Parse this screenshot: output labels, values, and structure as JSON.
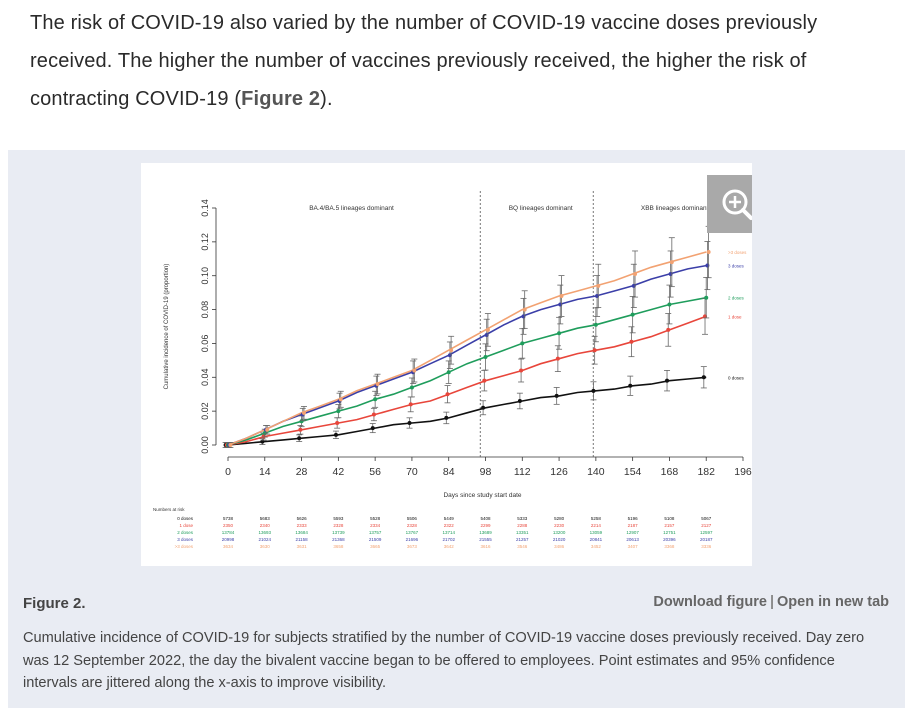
{
  "intro": {
    "text": "The risk of COVID-19 also varied by the number of COVID-19 vaccine doses previously received. The higher the number of vaccines previously received, the higher the risk of contracting COVID-19 (",
    "link": "Figure 2",
    "tail": ")."
  },
  "figure": {
    "label": "Figure 2.",
    "download": "Download figure",
    "separator": "|",
    "open_new_tab": "Open in new tab",
    "caption": "Cumulative incidence of COVID-19 for subjects stratified by the number of COVID-19 vaccine doses previously received. Day zero was 12 September 2022, the day the bivalent vaccine began to be offered to employees. Point estimates and 95% confidence intervals are jittered along the x-axis to improve visibility.",
    "zoom_icon": "zoom-in-icon"
  },
  "chart_data": {
    "type": "line",
    "xlabel": "Days since study start date",
    "ylabel": "Cumulative incidence of COVID-19 (proportion)",
    "xlim": [
      0,
      196
    ],
    "ylim": [
      0,
      0.14
    ],
    "xticks": [
      0,
      14,
      28,
      42,
      56,
      70,
      84,
      98,
      112,
      126,
      140,
      154,
      168,
      182,
      196
    ],
    "yticks": [
      0.0,
      0.02,
      0.04,
      0.06,
      0.08,
      0.1,
      0.12,
      0.14
    ],
    "ytick_labels": [
      "0.00",
      "0.02",
      "0.04",
      "0.06",
      "0.08",
      "0.10",
      "0.12",
      "0.14"
    ],
    "periods": [
      {
        "label": "BA.4/BA.5 lineages dominant",
        "center": 47
      },
      {
        "label": "BQ lineages dominant",
        "center": 119
      },
      {
        "label": "XBB lineages dominant",
        "center": 170
      }
    ],
    "period_boundaries": [
      96,
      139
    ],
    "x": [
      0,
      7,
      14,
      21,
      28,
      35,
      42,
      49,
      56,
      63,
      70,
      77,
      84,
      91,
      98,
      105,
      112,
      119,
      126,
      133,
      140,
      147,
      154,
      161,
      168,
      175,
      182
    ],
    "series": [
      {
        "name": "0 doses",
        "color": "#111111",
        "values": [
          0.0,
          0.001,
          0.002,
          0.003,
          0.004,
          0.005,
          0.006,
          0.008,
          0.01,
          0.012,
          0.013,
          0.014,
          0.016,
          0.019,
          0.022,
          0.024,
          0.026,
          0.028,
          0.029,
          0.031,
          0.032,
          0.033,
          0.035,
          0.036,
          0.038,
          0.039,
          0.04
        ]
      },
      {
        "name": "1 dose",
        "color": "#e8463b",
        "values": [
          0.0,
          0.002,
          0.005,
          0.007,
          0.009,
          0.011,
          0.013,
          0.015,
          0.018,
          0.021,
          0.024,
          0.026,
          0.03,
          0.034,
          0.038,
          0.041,
          0.044,
          0.048,
          0.051,
          0.054,
          0.056,
          0.058,
          0.061,
          0.064,
          0.068,
          0.072,
          0.076
        ]
      },
      {
        "name": "2 doses",
        "color": "#1f9d5c",
        "values": [
          0.0,
          0.003,
          0.007,
          0.011,
          0.014,
          0.017,
          0.02,
          0.023,
          0.027,
          0.03,
          0.034,
          0.038,
          0.043,
          0.048,
          0.052,
          0.056,
          0.06,
          0.063,
          0.066,
          0.069,
          0.071,
          0.074,
          0.077,
          0.08,
          0.083,
          0.085,
          0.087
        ]
      },
      {
        "name": "3 doses",
        "color": "#3b3fa8",
        "values": [
          0.0,
          0.004,
          0.009,
          0.014,
          0.018,
          0.022,
          0.026,
          0.031,
          0.035,
          0.039,
          0.043,
          0.048,
          0.053,
          0.059,
          0.065,
          0.071,
          0.076,
          0.08,
          0.083,
          0.086,
          0.088,
          0.091,
          0.094,
          0.098,
          0.101,
          0.104,
          0.106
        ]
      },
      {
        "name": ">3 doses",
        "color": "#f2a272",
        "values": [
          0.0,
          0.004,
          0.009,
          0.014,
          0.019,
          0.023,
          0.027,
          0.032,
          0.036,
          0.04,
          0.044,
          0.05,
          0.056,
          0.062,
          0.068,
          0.074,
          0.08,
          0.084,
          0.088,
          0.091,
          0.094,
          0.097,
          0.101,
          0.105,
          0.108,
          0.111,
          0.114
        ]
      }
    ],
    "risk_table": {
      "title": "Numbers at risk",
      "times": [
        0,
        14,
        28,
        42,
        56,
        70,
        84,
        98,
        112,
        126,
        140,
        154,
        168,
        182
      ],
      "rows": [
        {
          "name": "0 doses",
          "color": "#111111",
          "values": [
            "5738",
            "5683",
            "5626",
            "5593",
            "5528",
            "5506",
            "5449",
            "5408",
            "5333",
            "5280",
            "5258",
            "5196",
            "5108",
            "5067"
          ]
        },
        {
          "name": "1 dose",
          "color": "#e8463b",
          "values": [
            "2350",
            "2340",
            "2333",
            "2328",
            "2334",
            "2328",
            "2322",
            "2299",
            "2288",
            "2230",
            "2214",
            "2187",
            "2157",
            "2127"
          ]
        },
        {
          "name": "2 doses",
          "color": "#1f9d5c",
          "values": [
            "13784",
            "13693",
            "13684",
            "13739",
            "13757",
            "13767",
            "13714",
            "13689",
            "13351",
            "13200",
            "13059",
            "12907",
            "12751",
            "12597"
          ]
        },
        {
          "name": "3 doses",
          "color": "#3b3fa8",
          "values": [
            "20998",
            "21024",
            "21158",
            "21368",
            "21509",
            "21696",
            "21702",
            "21555",
            "21257",
            "21020",
            "20841",
            "20613",
            "20396",
            "20187"
          ]
        },
        {
          "name": ">3 doses",
          "color": "#f2a272",
          "values": [
            "3634",
            "3630",
            "3631",
            "3658",
            "3665",
            "3673",
            "3642",
            "3616",
            "3546",
            "3486",
            "3452",
            "3407",
            "3368",
            "3336"
          ]
        }
      ]
    }
  }
}
